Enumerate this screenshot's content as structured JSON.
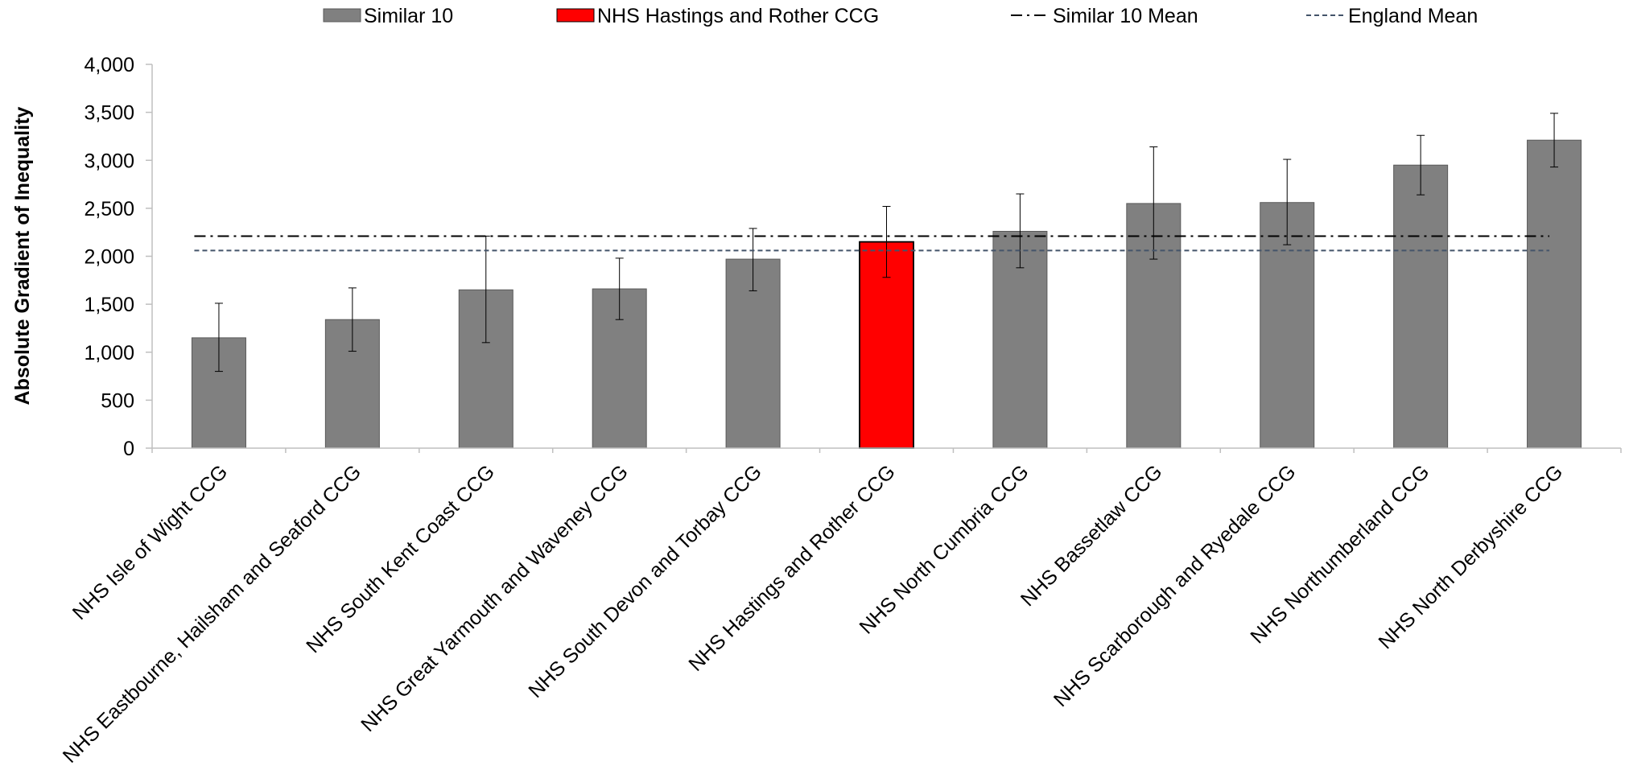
{
  "chart_data": {
    "type": "bar",
    "title": "",
    "xlabel": "",
    "ylabel": "Absolute Gradient of Inequality",
    "ylim": [
      0,
      4000
    ],
    "yticks": [
      0,
      500,
      1000,
      1500,
      2000,
      2500,
      3000,
      3500,
      4000
    ],
    "ytick_labels": [
      "0",
      "500",
      "1,000",
      "1,500",
      "2,000",
      "2,500",
      "3,000",
      "3,500",
      "4,000"
    ],
    "grid": false,
    "legend_position": "top",
    "legend": [
      {
        "label": "Similar 10",
        "kind": "bar",
        "color": "#808080"
      },
      {
        "label": "NHS Hastings and Rother CCG",
        "kind": "bar",
        "color": "#ff0000"
      },
      {
        "label": "Similar 10 Mean",
        "kind": "dashdot",
        "color": "#000000"
      },
      {
        "label": "England Mean",
        "kind": "dashed",
        "color": "#44546a"
      }
    ],
    "categories": [
      "NHS Isle of Wight CCG",
      "NHS Eastbourne, Hailsham and Seaford CCG",
      "NHS South Kent Coast CCG",
      "NHS Great Yarmouth and Waveney CCG",
      "NHS South Devon and Torbay CCG",
      "NHS Hastings and Rother CCG",
      "NHS North Cumbria CCG",
      "NHS Bassetlaw CCG",
      "NHS Scarborough and Ryedale CCG",
      "NHS Northumberland CCG",
      "NHS North Derbyshire CCG"
    ],
    "values": [
      1150,
      1340,
      1650,
      1660,
      1970,
      2150,
      2260,
      2550,
      2560,
      2950,
      3210
    ],
    "error_low": [
      800,
      1010,
      1100,
      1340,
      1640,
      1780,
      1880,
      1970,
      2120,
      2640,
      2930
    ],
    "error_high": [
      1510,
      1670,
      2210,
      1980,
      2290,
      2520,
      2650,
      3140,
      3010,
      3260,
      3490
    ],
    "highlight_index": 5,
    "colors": {
      "bar": "#808080",
      "highlight": "#ff0000",
      "axis": "#bfbfbf"
    },
    "reference_lines": [
      {
        "name": "Similar 10 Mean",
        "value": 2210,
        "style": "dashdot",
        "color": "#000000"
      },
      {
        "name": "England Mean",
        "value": 2060,
        "style": "dashed",
        "color": "#44546a"
      }
    ]
  }
}
